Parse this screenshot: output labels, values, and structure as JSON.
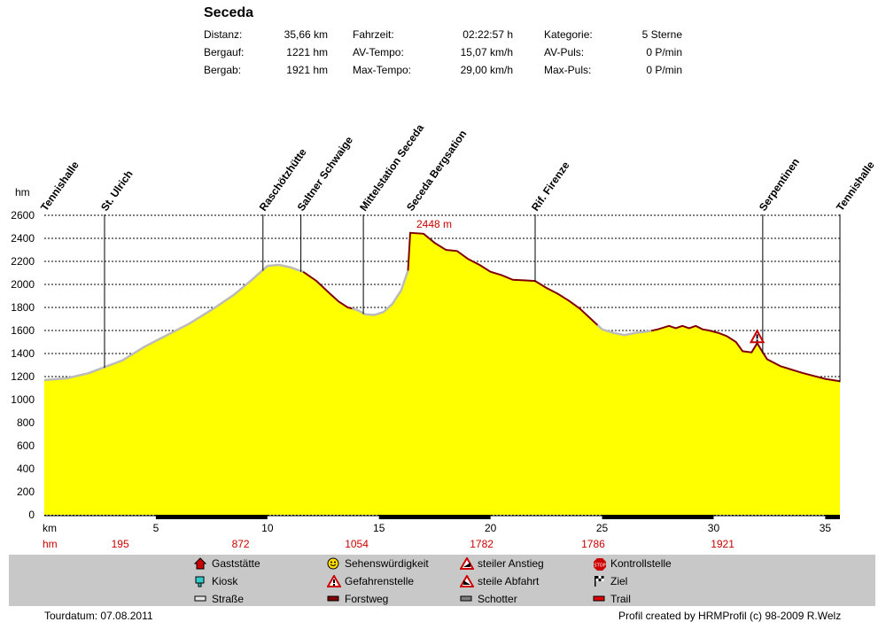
{
  "header": {
    "title": "Seceda",
    "stats": [
      [
        {
          "label": "Distanz:",
          "value": "35,66 km"
        },
        {
          "label": "Fahrzeit:",
          "value": "02:22:57 h"
        },
        {
          "label": "Kategorie:",
          "value": "5 Sterne"
        }
      ],
      [
        {
          "label": "Bergauf:",
          "value": "1221 hm"
        },
        {
          "label": "AV-Tempo:",
          "value": "15,07 km/h"
        },
        {
          "label": "AV-Puls:",
          "value": "0 P/min"
        }
      ],
      [
        {
          "label": "Bergab:",
          "value": "1921 hm"
        },
        {
          "label": "Max-Tempo:",
          "value": "29,00 km/h"
        },
        {
          "label": "Max-Puls:",
          "value": "0 P/min"
        }
      ]
    ]
  },
  "chart_data": {
    "type": "area",
    "title": "Seceda",
    "xlabel": "km",
    "ylabel": "hm",
    "xlim": [
      0,
      35.66
    ],
    "ylim": [
      0,
      2600
    ],
    "grid": true,
    "fill_color": "#ffff00",
    "profile": {
      "x": [
        0,
        1,
        2,
        2.8,
        3.5,
        4.5,
        5.5,
        6.5,
        7.5,
        8.5,
        9.3,
        10,
        10.5,
        11,
        11.6,
        12.2,
        12.8,
        13.2,
        13.6,
        14,
        14.4,
        14.8,
        15.2,
        15.6,
        16,
        16.3,
        16.4,
        17,
        17.5,
        18,
        18.5,
        19,
        19.5,
        20,
        20.5,
        21,
        21.5,
        22,
        22.5,
        23,
        23.5,
        24,
        24.5,
        25,
        25.5,
        26,
        26.5,
        27,
        27.5,
        28,
        28.3,
        28.6,
        28.9,
        29.2,
        29.5,
        29.8,
        30.2,
        30.6,
        31,
        31.3,
        31.7,
        31.95,
        32.2,
        32.4,
        33,
        34,
        35,
        35.66
      ],
      "hm": [
        1170,
        1185,
        1230,
        1290,
        1340,
        1460,
        1560,
        1660,
        1780,
        1910,
        2040,
        2160,
        2170,
        2150,
        2110,
        2030,
        1920,
        1850,
        1800,
        1780,
        1740,
        1735,
        1760,
        1830,
        1950,
        2120,
        2448,
        2440,
        2360,
        2300,
        2290,
        2220,
        2170,
        2110,
        2080,
        2040,
        2035,
        2030,
        1970,
        1920,
        1860,
        1790,
        1700,
        1610,
        1580,
        1560,
        1580,
        1590,
        1610,
        1640,
        1620,
        1640,
        1620,
        1640,
        1610,
        1600,
        1580,
        1550,
        1500,
        1420,
        1410,
        1490,
        1410,
        1350,
        1290,
        1230,
        1180,
        1160
      ],
      "segments": [
        {
          "type": "Straße",
          "from_km": 0,
          "to_km": 11.6,
          "color": "#bbbbbb"
        },
        {
          "type": "Forstweg",
          "from_km": 11.6,
          "to_km": 13.8,
          "color": "#800000"
        },
        {
          "type": "Straße",
          "from_km": 13.8,
          "to_km": 16.3,
          "color": "#bbbbbb"
        },
        {
          "type": "Forstweg",
          "from_km": 16.3,
          "to_km": 24.8,
          "color": "#800000"
        },
        {
          "type": "Straße",
          "from_km": 24.8,
          "to_km": 27.2,
          "color": "#bbbbbb"
        },
        {
          "type": "Forstweg",
          "from_km": 27.2,
          "to_km": 35.66,
          "color": "#800000"
        }
      ]
    },
    "max_label": {
      "text": "2448 m",
      "km": 16.4,
      "hm": 2448
    },
    "waypoints": [
      {
        "name": "Tennishalle",
        "km": 0,
        "line": false
      },
      {
        "name": "St. Ulrich",
        "km": 2.7,
        "line": true
      },
      {
        "name": "Raschötzhütte",
        "km": 9.8,
        "line": true
      },
      {
        "name": "Saltner Schwaige",
        "km": 11.5,
        "line": true
      },
      {
        "name": "Mittelstation Seceda",
        "km": 14.3,
        "line": true
      },
      {
        "name": "Seceda Bergsation",
        "km": 16.4,
        "line": false
      },
      {
        "name": "Rif. Firenze",
        "km": 22.0,
        "line": true
      },
      {
        "name": "Serpentinen",
        "km": 32.2,
        "line": true
      },
      {
        "name": "Tennishalle",
        "km": 35.66,
        "line": true
      }
    ],
    "danger_marker_km": 31.95,
    "yticks": [
      0,
      200,
      400,
      600,
      800,
      1000,
      1200,
      1400,
      1600,
      1800,
      2000,
      2200,
      2400,
      2600
    ],
    "xticks": [
      5,
      10,
      15,
      20,
      25,
      30,
      35
    ],
    "km_unit": "km",
    "hm_unit": "hm",
    "hm_row": [
      {
        "value": "195",
        "km": 3.4
      },
      {
        "value": "872",
        "km": 8.8
      },
      {
        "value": "1054",
        "km": 14.0
      },
      {
        "value": "1782",
        "km": 19.6
      },
      {
        "value": "1786",
        "km": 24.6
      },
      {
        "value": "1921",
        "km": 30.4
      }
    ],
    "bottom_bars": [
      [
        5,
        10
      ],
      [
        15,
        20
      ],
      [
        25,
        30
      ],
      [
        35,
        35.66
      ]
    ]
  },
  "legend": [
    {
      "label": "Gaststätte",
      "icon": "house-icon"
    },
    {
      "label": "Sehenswürdigkeit",
      "icon": "smiley-icon"
    },
    {
      "label": "steiler Anstieg",
      "icon": "steep-ascent-icon"
    },
    {
      "label": "Kontrollstelle",
      "icon": "stop-icon"
    },
    {
      "label": "Kiosk",
      "icon": "kiosk-icon"
    },
    {
      "label": "Gefahrenstelle",
      "icon": "danger-icon"
    },
    {
      "label": "steile Abfahrt",
      "icon": "steep-descent-icon"
    },
    {
      "label": "Ziel",
      "icon": "finish-flag-icon"
    },
    {
      "label": "Straße",
      "icon": "road-swatch"
    },
    {
      "label": "Forstweg",
      "icon": "forest-road-swatch"
    },
    {
      "label": "Schotter",
      "icon": "gravel-swatch"
    },
    {
      "label": "Trail",
      "icon": "trail-swatch"
    }
  ],
  "footer": {
    "date": "Tourdatum: 07.08.2011",
    "credit": "Profil created by HRMProfil (c) 98-2009 R.Welz"
  }
}
